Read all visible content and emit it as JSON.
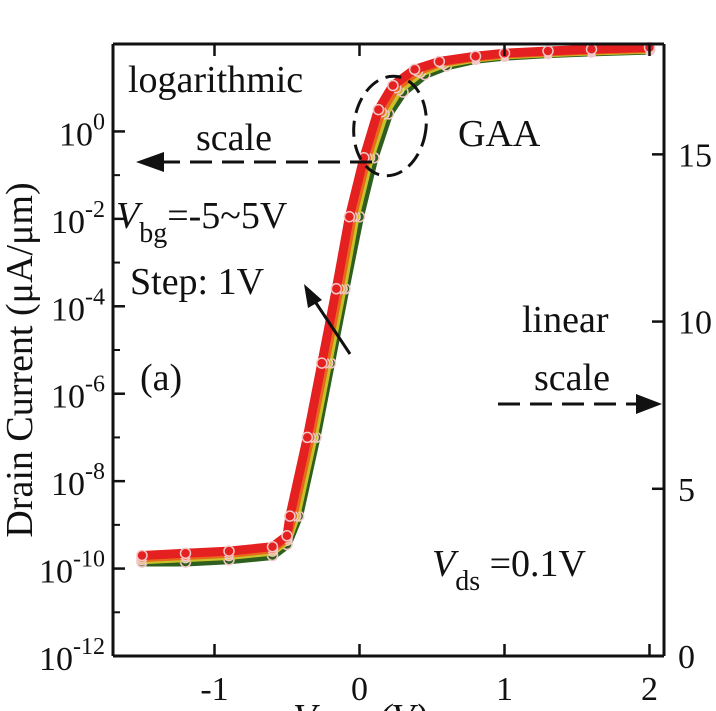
{
  "chart_data": {
    "type": "line",
    "panel_label": "(a)",
    "xlabel": "V_gs (V)",
    "ylabel_left": "Drain Current (μA/μm)",
    "ylabel_right": "",
    "xlim": [
      -1.7,
      2.1
    ],
    "ylim_left": [
      -12,
      2
    ],
    "y_left_scale": "log",
    "ylim_right": [
      0,
      18.3
    ],
    "x_ticks": [
      {
        "value": -1,
        "label": "-1"
      },
      {
        "value": 0,
        "label": "0"
      },
      {
        "value": 1,
        "label": "1"
      },
      {
        "value": 2,
        "label": "2"
      }
    ],
    "y_left_ticks": [
      {
        "exp": 0,
        "base": "10",
        "sup": "0"
      },
      {
        "exp": -2,
        "base": "10",
        "sup": "-2"
      },
      {
        "exp": -4,
        "base": "10",
        "sup": "-4"
      },
      {
        "exp": -6,
        "base": "10",
        "sup": "-6"
      },
      {
        "exp": -8,
        "base": "10",
        "sup": "-8"
      },
      {
        "exp": -10,
        "base": "10",
        "sup": "-10"
      },
      {
        "exp": -12,
        "base": "10",
        "sup": "-12"
      }
    ],
    "y_right_ticks": [
      {
        "value": 0,
        "label": "0"
      },
      {
        "value": 5,
        "label": "5"
      },
      {
        "value": 10,
        "label": "10"
      },
      {
        "value": 15,
        "label": "15"
      }
    ],
    "annotations": {
      "log_scale_line1": "logarithmic",
      "log_scale_line2": "scale",
      "device": "GAA",
      "vbg_prefix": "V",
      "vbg_sub": "bg",
      "vbg_value": "=-5~5V",
      "step": "Step: 1V",
      "linear_line1": "linear",
      "linear_line2": "scale",
      "vds_prefix": "V",
      "vds_sub": "ds",
      "vds_value": " =0.1V"
    },
    "series": [
      {
        "color": "#2f5f1f",
        "x": [
          -1.5,
          -1.2,
          -0.9,
          -0.6,
          -0.5,
          -0.42,
          -0.3,
          -0.2,
          -0.1,
          0,
          0.1,
          0.2,
          0.3,
          0.45,
          0.6,
          0.8,
          1,
          1.3,
          1.6,
          2
        ],
        "log_y": [
          -9.85,
          -9.85,
          -9.8,
          -9.7,
          -9.45,
          -8.8,
          -7.0,
          -5.3,
          -3.6,
          -1.95,
          -0.6,
          0.4,
          0.9,
          1.3,
          1.5,
          1.65,
          1.72,
          1.78,
          1.82,
          1.86
        ]
      },
      {
        "color": "#c8c22a",
        "x": [
          -1.5,
          -1.2,
          -0.9,
          -0.6,
          -0.5,
          -0.44,
          -0.32,
          -0.22,
          -0.12,
          -0.03,
          0.07,
          0.17,
          0.27,
          0.42,
          0.58,
          0.8,
          1,
          1.3,
          1.6,
          2
        ],
        "log_y": [
          -9.8,
          -9.75,
          -9.7,
          -9.6,
          -9.35,
          -8.8,
          -7.0,
          -5.3,
          -3.6,
          -1.95,
          -0.6,
          0.4,
          0.95,
          1.35,
          1.55,
          1.68,
          1.75,
          1.8,
          1.84,
          1.88
        ]
      },
      {
        "color": "#e8681a",
        "x": [
          -1.5,
          -1.2,
          -0.9,
          -0.6,
          -0.5,
          -0.46,
          -0.34,
          -0.24,
          -0.14,
          -0.05,
          0.05,
          0.15,
          0.25,
          0.4,
          0.56,
          0.8,
          1,
          1.3,
          1.6,
          2
        ],
        "log_y": [
          -9.75,
          -9.7,
          -9.65,
          -9.55,
          -9.3,
          -8.8,
          -7.0,
          -5.3,
          -3.6,
          -1.95,
          -0.6,
          0.45,
          1.0,
          1.38,
          1.58,
          1.7,
          1.77,
          1.82,
          1.86,
          1.9
        ]
      },
      {
        "color": "#e52020",
        "x": [
          -1.5,
          -1.2,
          -0.9,
          -0.6,
          -0.5,
          -0.48,
          -0.36,
          -0.26,
          -0.16,
          -0.07,
          0.03,
          0.13,
          0.23,
          0.38,
          0.55,
          0.8,
          1,
          1.3,
          1.6,
          2
        ],
        "log_y": [
          -9.7,
          -9.65,
          -9.6,
          -9.5,
          -9.25,
          -8.8,
          -7.0,
          -5.3,
          -3.6,
          -1.95,
          -0.6,
          0.5,
          1.05,
          1.42,
          1.6,
          1.72,
          1.79,
          1.84,
          1.88,
          1.92
        ]
      }
    ]
  }
}
